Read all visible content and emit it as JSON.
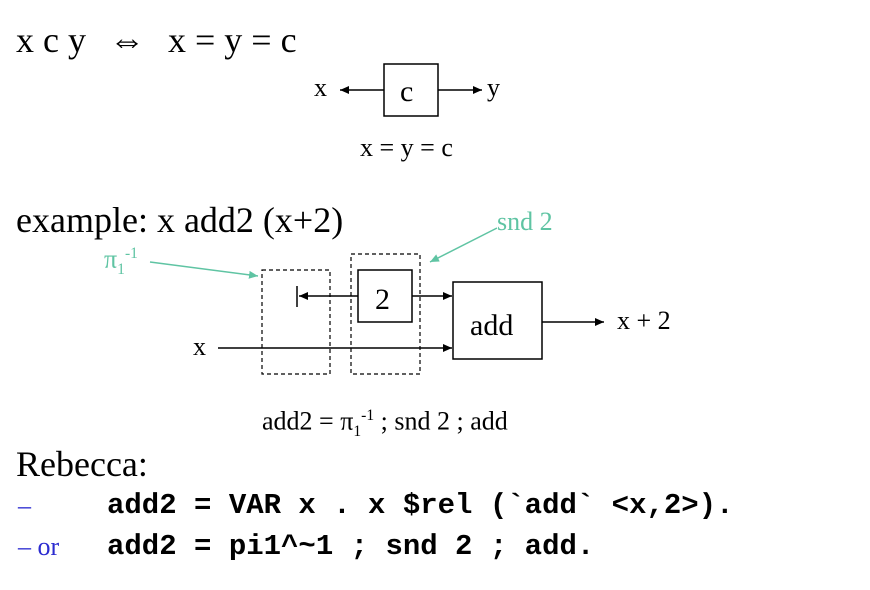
{
  "header": {
    "lhs": "x c y",
    "iff": "⇔",
    "rhs": "x = y = c"
  },
  "diagram1": {
    "x_label": "x",
    "box_label": "c",
    "y_label": "y",
    "caption": "x = y = c"
  },
  "example": {
    "title": "example:  x add2 (x+2)",
    "pi_label_base": "π",
    "pi_label_sub": "1",
    "pi_label_sup": "-1",
    "snd_label": "snd 2",
    "const_label": "2",
    "add_label": "add",
    "x_label": "x",
    "out_label": "x + 2",
    "def_prefix": "add2  =  π",
    "def_sub": "1",
    "def_sup": "-1",
    "def_suffix": " ; snd 2 ; add"
  },
  "rebecca": {
    "title": "Rebecca:",
    "line1_dash": "–",
    "line1_code": "add2 = VAR x . x $rel (`add` <x,2>).",
    "line2_dash": "– or",
    "line2_code": "add2 = pi1^~1 ; snd 2 ; add."
  },
  "colors": {
    "annotation": "#5fc4a3",
    "bullet": "#2b2bd0"
  }
}
